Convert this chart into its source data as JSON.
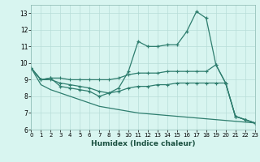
{
  "xlabel": "Humidex (Indice chaleur)",
  "x_values": [
    0,
    1,
    2,
    3,
    4,
    5,
    6,
    7,
    8,
    9,
    10,
    11,
    12,
    13,
    14,
    15,
    16,
    17,
    18,
    19,
    20,
    21,
    22,
    23
  ],
  "series": {
    "main": [
      9.7,
      9.0,
      9.1,
      8.6,
      8.5,
      8.4,
      8.3,
      8.0,
      8.2,
      8.5,
      9.5,
      11.3,
      11.0,
      11.0,
      11.1,
      11.1,
      11.9,
      13.1,
      12.7,
      9.9,
      8.8,
      6.8,
      6.6,
      6.4
    ],
    "upper": [
      9.7,
      9.0,
      9.1,
      9.1,
      9.0,
      9.0,
      9.0,
      9.0,
      9.0,
      9.1,
      9.3,
      9.4,
      9.4,
      9.4,
      9.5,
      9.5,
      9.5,
      9.5,
      9.5,
      9.9,
      8.8,
      6.8,
      6.6,
      6.4
    ],
    "lower": [
      9.7,
      9.0,
      9.0,
      8.8,
      8.7,
      8.6,
      8.5,
      8.3,
      8.2,
      8.3,
      8.5,
      8.6,
      8.6,
      8.7,
      8.7,
      8.8,
      8.8,
      8.8,
      8.8,
      8.8,
      8.8,
      6.8,
      6.6,
      6.4
    ],
    "bottom": [
      9.7,
      8.7,
      8.4,
      8.2,
      8.0,
      7.8,
      7.6,
      7.4,
      7.3,
      7.2,
      7.1,
      7.0,
      6.95,
      6.9,
      6.85,
      6.8,
      6.75,
      6.7,
      6.65,
      6.6,
      6.55,
      6.5,
      6.45,
      6.4
    ]
  },
  "color": "#2e7d6e",
  "bg_color": "#d8f5f0",
  "grid_color": "#b8ddd8",
  "ylim": [
    6,
    13.5
  ],
  "xlim": [
    0,
    23
  ],
  "yticks": [
    6,
    7,
    8,
    9,
    10,
    11,
    12,
    13
  ],
  "xticks": [
    0,
    1,
    2,
    3,
    4,
    5,
    6,
    7,
    8,
    9,
    10,
    11,
    12,
    13,
    14,
    15,
    16,
    17,
    18,
    19,
    20,
    21,
    22,
    23
  ]
}
